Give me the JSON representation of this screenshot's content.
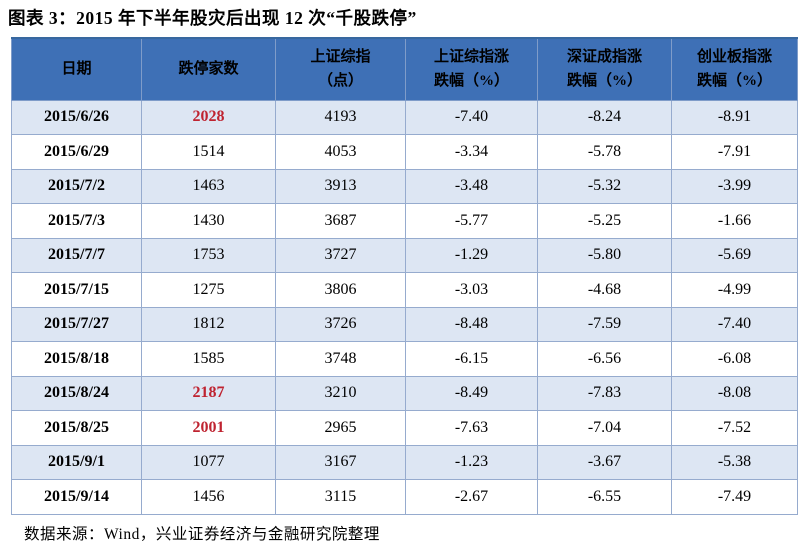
{
  "title": "图表 3：2015 年下半年股灾后出现 12 次“千股跌停”",
  "source_note": "数据来源：Wind，兴业证券经济与金融研究院整理",
  "colors": {
    "header_bg": "#3e70b6",
    "row_alt_bg": "#dde6f3",
    "row_bg": "#ffffff",
    "grid_border": "#96abce",
    "highlight_red": "#bf2330",
    "text": "#000000"
  },
  "table": {
    "headers": [
      {
        "line1": "日期",
        "line2": ""
      },
      {
        "line1": "跌停家数",
        "line2": ""
      },
      {
        "line1": "上证综指",
        "line2": "（点）"
      },
      {
        "line1": "上证综指涨",
        "line2": "跌幅（%）"
      },
      {
        "line1": "深证成指涨",
        "line2": "跌幅（%）"
      },
      {
        "line1": "创业板指涨",
        "line2": "跌幅（%）"
      }
    ],
    "rows": [
      {
        "date": "2015/6/26",
        "count": "2028",
        "count_red": true,
        "sh_index": "4193",
        "sh_chg": "-7.40",
        "sz_chg": "-8.24",
        "cyb_chg": "-8.91"
      },
      {
        "date": "2015/6/29",
        "count": "1514",
        "count_red": false,
        "sh_index": "4053",
        "sh_chg": "-3.34",
        "sz_chg": "-5.78",
        "cyb_chg": "-7.91"
      },
      {
        "date": "2015/7/2",
        "count": "1463",
        "count_red": false,
        "sh_index": "3913",
        "sh_chg": "-3.48",
        "sz_chg": "-5.32",
        "cyb_chg": "-3.99"
      },
      {
        "date": "2015/7/3",
        "count": "1430",
        "count_red": false,
        "sh_index": "3687",
        "sh_chg": "-5.77",
        "sz_chg": "-5.25",
        "cyb_chg": "-1.66"
      },
      {
        "date": "2015/7/7",
        "count": "1753",
        "count_red": false,
        "sh_index": "3727",
        "sh_chg": "-1.29",
        "sz_chg": "-5.80",
        "cyb_chg": "-5.69"
      },
      {
        "date": "2015/7/15",
        "count": "1275",
        "count_red": false,
        "sh_index": "3806",
        "sh_chg": "-3.03",
        "sz_chg": "-4.68",
        "cyb_chg": "-4.99"
      },
      {
        "date": "2015/7/27",
        "count": "1812",
        "count_red": false,
        "sh_index": "3726",
        "sh_chg": "-8.48",
        "sz_chg": "-7.59",
        "cyb_chg": "-7.40"
      },
      {
        "date": "2015/8/18",
        "count": "1585",
        "count_red": false,
        "sh_index": "3748",
        "sh_chg": "-6.15",
        "sz_chg": "-6.56",
        "cyb_chg": "-6.08"
      },
      {
        "date": "2015/8/24",
        "count": "2187",
        "count_red": true,
        "sh_index": "3210",
        "sh_chg": "-8.49",
        "sz_chg": "-7.83",
        "cyb_chg": "-8.08"
      },
      {
        "date": "2015/8/25",
        "count": "2001",
        "count_red": true,
        "sh_index": "2965",
        "sh_chg": "-7.63",
        "sz_chg": "-7.04",
        "cyb_chg": "-7.52"
      },
      {
        "date": "2015/9/1",
        "count": "1077",
        "count_red": false,
        "sh_index": "3167",
        "sh_chg": "-1.23",
        "sz_chg": "-3.67",
        "cyb_chg": "-5.38"
      },
      {
        "date": "2015/9/14",
        "count": "1456",
        "count_red": false,
        "sh_index": "3115",
        "sh_chg": "-2.67",
        "sz_chg": "-6.55",
        "cyb_chg": "-7.49"
      }
    ]
  }
}
